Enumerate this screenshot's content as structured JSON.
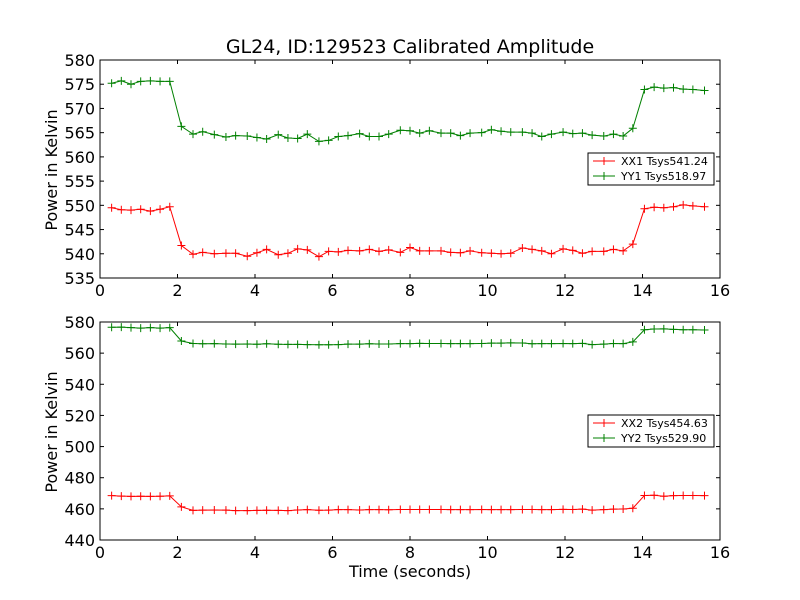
{
  "chart_data": [
    {
      "type": "line",
      "title": "GL24, ID:129523 Calibrated Amplitude",
      "xlabel": "",
      "ylabel": "Power in Kelvin",
      "xlim": [
        0,
        16
      ],
      "ylim": [
        535,
        580
      ],
      "xticks": [
        0,
        2,
        4,
        6,
        8,
        10,
        12,
        14,
        16
      ],
      "yticks": [
        535,
        540,
        545,
        550,
        555,
        560,
        565,
        570,
        575,
        580
      ],
      "grid": false,
      "legend_position": "right",
      "x": [
        0.3,
        0.55,
        0.8,
        1.05,
        1.3,
        1.55,
        1.8,
        2.1,
        2.4,
        2.65,
        2.95,
        3.25,
        3.5,
        3.8,
        4.05,
        4.3,
        4.6,
        4.85,
        5.1,
        5.35,
        5.65,
        5.9,
        6.15,
        6.4,
        6.7,
        6.95,
        7.2,
        7.45,
        7.75,
        8.0,
        8.25,
        8.5,
        8.8,
        9.05,
        9.3,
        9.55,
        9.85,
        10.1,
        10.35,
        10.6,
        10.9,
        11.15,
        11.4,
        11.65,
        11.95,
        12.2,
        12.45,
        12.7,
        13.0,
        13.25,
        13.5,
        13.75,
        14.05,
        14.3,
        14.55,
        14.8,
        15.05,
        15.3,
        15.6
      ],
      "series": [
        {
          "name": "XX1 Tsys541.24",
          "color": "#ff0000",
          "values": [
            549.5,
            549.1,
            549.0,
            549.2,
            548.8,
            549.2,
            549.7,
            541.7,
            539.9,
            540.3,
            540.0,
            540.1,
            540.1,
            539.5,
            540.2,
            540.9,
            539.8,
            540.1,
            541.0,
            540.8,
            539.4,
            540.5,
            540.4,
            540.7,
            540.6,
            540.9,
            540.5,
            540.8,
            540.3,
            541.3,
            540.6,
            540.6,
            540.6,
            540.3,
            540.2,
            540.6,
            540.2,
            540.1,
            540.0,
            540.1,
            541.2,
            540.9,
            540.6,
            540.0,
            541.0,
            540.7,
            540.1,
            540.5,
            540.5,
            540.9,
            540.6,
            542.0,
            549.3,
            549.6,
            549.5,
            549.7,
            550.1,
            549.9,
            549.7
          ]
        },
        {
          "name": "YY1 Tsys518.97",
          "color": "#008000",
          "values": [
            575.2,
            575.7,
            575.0,
            575.6,
            575.7,
            575.6,
            575.6,
            566.3,
            564.7,
            565.2,
            564.6,
            564.1,
            564.4,
            564.3,
            564.0,
            563.7,
            564.6,
            563.9,
            563.8,
            564.7,
            563.2,
            563.4,
            564.2,
            564.4,
            564.8,
            564.2,
            564.2,
            564.7,
            565.5,
            565.4,
            564.9,
            565.4,
            564.9,
            564.9,
            564.4,
            564.9,
            565.0,
            565.6,
            565.3,
            565.1,
            565.1,
            564.9,
            564.2,
            564.7,
            565.1,
            564.8,
            564.9,
            564.5,
            564.3,
            564.7,
            564.3,
            565.9,
            573.9,
            574.4,
            574.2,
            574.3,
            574.0,
            573.9,
            573.7
          ]
        }
      ]
    },
    {
      "type": "line",
      "title": "",
      "xlabel": "Time (seconds)",
      "ylabel": "Power in Kelvin",
      "xlim": [
        0,
        16
      ],
      "ylim": [
        440,
        580
      ],
      "xticks": [
        0,
        2,
        4,
        6,
        8,
        10,
        12,
        14,
        16
      ],
      "yticks": [
        440,
        460,
        480,
        500,
        520,
        540,
        560,
        580
      ],
      "grid": false,
      "legend_position": "right",
      "x": [
        0.3,
        0.55,
        0.8,
        1.05,
        1.3,
        1.55,
        1.8,
        2.1,
        2.4,
        2.65,
        2.95,
        3.25,
        3.5,
        3.8,
        4.05,
        4.3,
        4.6,
        4.85,
        5.1,
        5.35,
        5.65,
        5.9,
        6.15,
        6.4,
        6.7,
        6.95,
        7.2,
        7.45,
        7.75,
        8.0,
        8.25,
        8.5,
        8.8,
        9.05,
        9.3,
        9.55,
        9.85,
        10.1,
        10.35,
        10.6,
        10.9,
        11.15,
        11.4,
        11.65,
        11.95,
        12.2,
        12.45,
        12.7,
        13.0,
        13.25,
        13.5,
        13.75,
        14.05,
        14.3,
        14.55,
        14.8,
        15.05,
        15.3,
        15.6
      ],
      "series": [
        {
          "name": "XX2 Tsys454.63",
          "color": "#ff0000",
          "values": [
            468.5,
            468.2,
            468.0,
            468.1,
            468.0,
            468.1,
            468.3,
            461.3,
            459.0,
            459.2,
            459.3,
            459.2,
            458.9,
            458.9,
            459.0,
            459.1,
            459.0,
            458.9,
            459.3,
            459.5,
            459.1,
            459.2,
            459.5,
            459.5,
            459.3,
            459.5,
            459.5,
            459.4,
            459.6,
            459.6,
            459.6,
            459.6,
            459.6,
            459.5,
            459.5,
            459.5,
            459.6,
            459.5,
            459.5,
            459.5,
            459.6,
            459.6,
            459.5,
            459.5,
            459.7,
            459.6,
            459.8,
            459.2,
            459.5,
            459.8,
            459.9,
            460.4,
            468.6,
            468.7,
            468.1,
            468.5,
            468.6,
            468.6,
            468.5
          ]
        },
        {
          "name": "YY2 Tsys529.90",
          "color": "#008000",
          "values": [
            576.6,
            576.7,
            576.4,
            576.1,
            576.4,
            576.1,
            576.4,
            567.8,
            566.2,
            566.0,
            566.1,
            565.9,
            565.8,
            565.9,
            565.7,
            566.0,
            565.7,
            565.6,
            565.6,
            565.5,
            565.4,
            565.4,
            565.5,
            565.8,
            565.8,
            566.0,
            565.9,
            565.9,
            566.1,
            566.1,
            566.3,
            566.2,
            566.2,
            566.1,
            566.1,
            566.1,
            566.2,
            566.4,
            566.4,
            566.6,
            566.5,
            566.0,
            566.1,
            566.1,
            566.2,
            566.1,
            566.3,
            565.5,
            565.8,
            566.2,
            566.1,
            567.2,
            575.0,
            575.5,
            575.6,
            575.3,
            575.0,
            575.0,
            574.9
          ]
        }
      ]
    }
  ]
}
